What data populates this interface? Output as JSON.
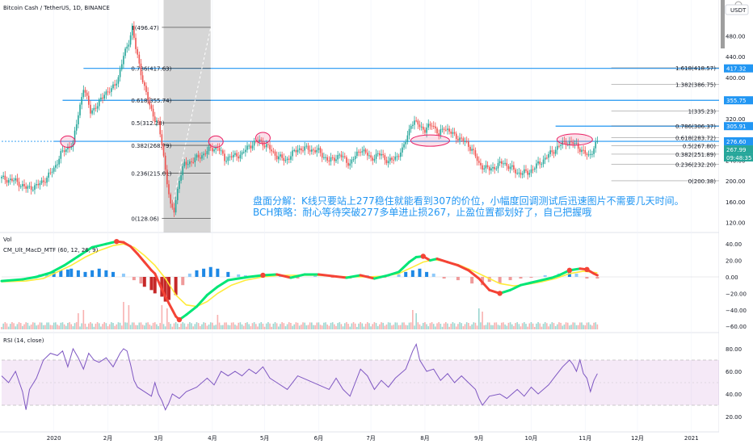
{
  "header": {
    "title": "Bitcoin Cash / TetherUS, 1D, BINANCE",
    "currency": "USDT"
  },
  "x_axis": {
    "ticks": [
      {
        "label": "2020",
        "t": 30
      },
      {
        "label": "2月",
        "t": 61
      },
      {
        "label": "3月",
        "t": 90
      },
      {
        "label": "4月",
        "t": 121
      },
      {
        "label": "5月",
        "t": 151
      },
      {
        "label": "6月",
        "t": 182
      },
      {
        "label": "7月",
        "t": 212
      },
      {
        "label": "8月",
        "t": 243
      },
      {
        "label": "9月",
        "t": 274
      },
      {
        "label": "10月",
        "t": 304
      },
      {
        "label": "11月",
        "t": 335
      },
      {
        "label": "12月",
        "t": 365
      },
      {
        "label": "2021",
        "t": 396
      }
    ],
    "t_min": 0,
    "t_max": 410
  },
  "main_chart": {
    "y_range": [
      110,
      515
    ],
    "y_ticks": [
      {
        "v": 480,
        "label": "480.00"
      },
      {
        "v": 440,
        "label": "440.00"
      },
      {
        "v": 400,
        "label": "400.00"
      },
      {
        "v": 360,
        "label": "360.00"
      },
      {
        "v": 320,
        "label": "320.00"
      },
      {
        "v": 280,
        "label": "280.00"
      },
      {
        "v": 240,
        "label": "240.00"
      },
      {
        "v": 200,
        "label": "200.00"
      },
      {
        "v": 160,
        "label": "160.00"
      },
      {
        "v": 120,
        "label": "120.00"
      }
    ],
    "price_tags": [
      {
        "v": 417.32,
        "label": "417.32",
        "color": "#2196f3"
      },
      {
        "v": 355.75,
        "label": "355.75",
        "color": "#2196f3"
      },
      {
        "v": 305.91,
        "label": "305.91",
        "color": "#2196f3"
      },
      {
        "v": 276.6,
        "label": "276.60",
        "color": "#2196f3"
      },
      {
        "v": 267.99,
        "label": "267.99",
        "color": "#26a69a"
      },
      {
        "v": 258.0,
        "label": "09:48:35",
        "color": "#26a69a"
      }
    ],
    "horizontal_lines": [
      {
        "v": 417.32,
        "t0": 47,
        "color": "#2196f3"
      },
      {
        "v": 355.75,
        "t0": 35,
        "color": "#2196f3"
      },
      {
        "v": 305.91,
        "t0": 318,
        "color": "#2196f3"
      },
      {
        "v": 276.6,
        "t0": 30,
        "color": "#2196f3"
      }
    ],
    "fib_left": {
      "t_start": 92,
      "t_end": 120,
      "levels": [
        {
          "v": 496.47,
          "label": "1(496.47)"
        },
        {
          "v": 417.63,
          "label": "0.786(417.63)"
        },
        {
          "v": 355.74,
          "label": "0.618(355.74)"
        },
        {
          "v": 312.28,
          "label": "0.5(312.28)"
        },
        {
          "v": 268.79,
          "label": "0.382(268.79)"
        },
        {
          "v": 215.01,
          "label": "0.236(215.01)"
        },
        {
          "v": 128.06,
          "label": "0(128.06)"
        }
      ]
    },
    "fib_right": {
      "t_start": 350,
      "levels": [
        {
          "v": 418.57,
          "label": "1.618(418.57)"
        },
        {
          "v": 386.75,
          "label": "1.382(386.75)"
        },
        {
          "v": 335.23,
          "label": "1(335.23)"
        },
        {
          "v": 306.37,
          "label": "0.786(306.37)"
        },
        {
          "v": 283.72,
          "label": "0.618(283.72)"
        },
        {
          "v": 267.8,
          "label": "0.5(267.80)"
        },
        {
          "v": 251.89,
          "label": "0.382(251.89)"
        },
        {
          "v": 232.2,
          "label": "0.236(232.20)"
        },
        {
          "v": 200.38,
          "label": "0(200.38)"
        }
      ]
    },
    "ellipses": [
      {
        "t": 38,
        "v": 276
      },
      {
        "t": 123,
        "v": 276
      },
      {
        "t": 150,
        "v": 283
      },
      {
        "t": 246,
        "v": 278
      },
      {
        "t": 329,
        "v": 280
      }
    ],
    "annotation_lines": [
      "盘面分解：K线只要站上277稳住就能看到307的价位，小幅度回调测试后迅速图片不需要几天时间。",
      "BCH策略：耐心等待突破277多单进止损267，止盈位置都划好了，自己把握哦"
    ]
  },
  "volume_label": "Vol",
  "macd": {
    "label": "CM_Ult_MacD_MTF (60, 12, 26, 9)",
    "y_ticks": [
      {
        "v": 40,
        "label": "40.00"
      },
      {
        "v": 20,
        "label": "20.00"
      },
      {
        "v": 0,
        "label": "0.00"
      },
      {
        "v": -20,
        "label": "−20.00"
      },
      {
        "v": -40,
        "label": "−40.00"
      },
      {
        "v": -60,
        "label": "−60.00"
      }
    ]
  },
  "rsi": {
    "label": "RSI (14, close)",
    "y_ticks": [
      {
        "v": 80,
        "label": "80.00"
      },
      {
        "v": 60,
        "label": "60.00"
      },
      {
        "v": 40,
        "label": "40.00"
      },
      {
        "v": 20,
        "label": "20.00"
      }
    ],
    "band": [
      30,
      70
    ]
  },
  "chart_data": {
    "type": "candlestick",
    "title": "Bitcoin Cash / TetherUS, 1D, BINANCE",
    "x_unit": "days since 2019-12-01",
    "price_path": [
      [
        0,
        205
      ],
      [
        8,
        200
      ],
      [
        14,
        186
      ],
      [
        20,
        190
      ],
      [
        26,
        206
      ],
      [
        30,
        224
      ],
      [
        34,
        252
      ],
      [
        38,
        265
      ],
      [
        41,
        272
      ],
      [
        44,
        330
      ],
      [
        47,
        380
      ],
      [
        51,
        335
      ],
      [
        55,
        345
      ],
      [
        59,
        370
      ],
      [
        63,
        375
      ],
      [
        67,
        400
      ],
      [
        70,
        440
      ],
      [
        73,
        470
      ],
      [
        75,
        496
      ],
      [
        77,
        455
      ],
      [
        79,
        425
      ],
      [
        82,
        380
      ],
      [
        85,
        345
      ],
      [
        88,
        320
      ],
      [
        90,
        310
      ],
      [
        92,
        270
      ],
      [
        95,
        200
      ],
      [
        97,
        150
      ],
      [
        99,
        142
      ],
      [
        102,
        205
      ],
      [
        105,
        232
      ],
      [
        110,
        240
      ],
      [
        115,
        250
      ],
      [
        120,
        262
      ],
      [
        124,
        265
      ],
      [
        128,
        243
      ],
      [
        133,
        248
      ],
      [
        138,
        252
      ],
      [
        142,
        268
      ],
      [
        148,
        278
      ],
      [
        152,
        268
      ],
      [
        158,
        248
      ],
      [
        163,
        240
      ],
      [
        170,
        262
      ],
      [
        176,
        262
      ],
      [
        182,
        257
      ],
      [
        188,
        238
      ],
      [
        194,
        250
      ],
      [
        200,
        233
      ],
      [
        206,
        262
      ],
      [
        212,
        244
      ],
      [
        218,
        252
      ],
      [
        222,
        236
      ],
      [
        226,
        246
      ],
      [
        230,
        258
      ],
      [
        235,
        310
      ],
      [
        239,
        312
      ],
      [
        243,
        296
      ],
      [
        247,
        312
      ],
      [
        251,
        288
      ],
      [
        254,
        305
      ],
      [
        258,
        292
      ],
      [
        262,
        284
      ],
      [
        266,
        275
      ],
      [
        270,
        262
      ],
      [
        274,
        232
      ],
      [
        280,
        222
      ],
      [
        288,
        236
      ],
      [
        296,
        216
      ],
      [
        302,
        216
      ],
      [
        308,
        232
      ],
      [
        314,
        250
      ],
      [
        320,
        268
      ],
      [
        324,
        276
      ],
      [
        330,
        270
      ],
      [
        334,
        255
      ],
      [
        337,
        248
      ],
      [
        342,
        275
      ]
    ],
    "vline_t": [
      93,
      120
    ],
    "vol_spikes": [
      [
        44,
        20
      ],
      [
        47,
        24
      ],
      [
        70,
        34
      ],
      [
        73,
        30
      ],
      [
        92,
        30
      ],
      [
        95,
        26
      ],
      [
        124,
        18
      ],
      [
        236,
        24
      ],
      [
        238,
        20
      ],
      [
        274,
        26
      ],
      [
        276,
        22
      ]
    ],
    "macd_fast": [
      [
        0,
        -5
      ],
      [
        12,
        -3
      ],
      [
        20,
        0
      ],
      [
        28,
        5
      ],
      [
        36,
        14
      ],
      [
        44,
        25
      ],
      [
        52,
        36
      ],
      [
        60,
        40
      ],
      [
        66,
        43
      ],
      [
        70,
        42
      ],
      [
        74,
        37
      ],
      [
        78,
        28
      ],
      [
        82,
        18
      ],
      [
        86,
        8
      ],
      [
        88,
        4
      ],
      [
        92,
        -15
      ],
      [
        96,
        -32
      ],
      [
        100,
        -48
      ],
      [
        102,
        -52
      ],
      [
        106,
        -46
      ],
      [
        112,
        -36
      ],
      [
        118,
        -22
      ],
      [
        124,
        -12
      ],
      [
        130,
        -4
      ],
      [
        136,
        -2
      ],
      [
        142,
        0
      ],
      [
        150,
        2
      ],
      [
        158,
        3
      ],
      [
        166,
        -1
      ],
      [
        174,
        3
      ],
      [
        182,
        3
      ],
      [
        190,
        1
      ],
      [
        198,
        -1
      ],
      [
        206,
        2
      ],
      [
        214,
        -2
      ],
      [
        222,
        2
      ],
      [
        228,
        6
      ],
      [
        234,
        18
      ],
      [
        238,
        24
      ],
      [
        242,
        25
      ],
      [
        246,
        20
      ],
      [
        250,
        22
      ],
      [
        256,
        18
      ],
      [
        262,
        14
      ],
      [
        268,
        8
      ],
      [
        274,
        -2
      ],
      [
        280,
        -16
      ],
      [
        286,
        -20
      ],
      [
        292,
        -16
      ],
      [
        298,
        -10
      ],
      [
        304,
        -7
      ],
      [
        310,
        -4
      ],
      [
        316,
        -1
      ],
      [
        320,
        2
      ],
      [
        326,
        8
      ],
      [
        332,
        10
      ],
      [
        336,
        9
      ],
      [
        340,
        4
      ],
      [
        342,
        2
      ]
    ],
    "macd_slow": [
      [
        0,
        -6
      ],
      [
        14,
        -5
      ],
      [
        24,
        -2
      ],
      [
        32,
        6
      ],
      [
        40,
        14
      ],
      [
        48,
        24
      ],
      [
        56,
        32
      ],
      [
        64,
        38
      ],
      [
        70,
        40
      ],
      [
        76,
        36
      ],
      [
        82,
        26
      ],
      [
        88,
        14
      ],
      [
        94,
        -2
      ],
      [
        100,
        -22
      ],
      [
        106,
        -34
      ],
      [
        112,
        -36
      ],
      [
        118,
        -30
      ],
      [
        124,
        -20
      ],
      [
        132,
        -10
      ],
      [
        140,
        -4
      ],
      [
        150,
        0
      ],
      [
        160,
        2
      ],
      [
        170,
        2
      ],
      [
        180,
        2
      ],
      [
        190,
        1
      ],
      [
        200,
        0
      ],
      [
        210,
        0
      ],
      [
        220,
        1
      ],
      [
        228,
        4
      ],
      [
        236,
        12
      ],
      [
        242,
        18
      ],
      [
        248,
        21
      ],
      [
        254,
        19
      ],
      [
        262,
        15
      ],
      [
        270,
        8
      ],
      [
        278,
        0
      ],
      [
        286,
        -8
      ],
      [
        294,
        -11
      ],
      [
        302,
        -9
      ],
      [
        310,
        -6
      ],
      [
        318,
        -2
      ],
      [
        326,
        4
      ],
      [
        334,
        7
      ],
      [
        342,
        5
      ]
    ],
    "macd_hist": [
      [
        22,
        3
      ],
      [
        26,
        4
      ],
      [
        30,
        6
      ],
      [
        34,
        8
      ],
      [
        38,
        9
      ],
      [
        40,
        10
      ],
      [
        44,
        8
      ],
      [
        48,
        6
      ],
      [
        52,
        8
      ],
      [
        56,
        10
      ],
      [
        60,
        8
      ],
      [
        64,
        6
      ],
      [
        70,
        4
      ],
      [
        76,
        -4
      ],
      [
        80,
        -8
      ],
      [
        82,
        -12
      ],
      [
        86,
        -16
      ],
      [
        88,
        -20
      ],
      [
        92,
        -24
      ],
      [
        94,
        -30
      ],
      [
        96,
        -28
      ],
      [
        100,
        -22
      ],
      [
        104,
        -10
      ],
      [
        108,
        4
      ],
      [
        112,
        8
      ],
      [
        116,
        10
      ],
      [
        120,
        12
      ],
      [
        124,
        10
      ],
      [
        130,
        6
      ],
      [
        136,
        3
      ],
      [
        140,
        2
      ],
      [
        146,
        1
      ],
      [
        152,
        2
      ],
      [
        160,
        2
      ],
      [
        170,
        -2
      ],
      [
        180,
        2
      ],
      [
        190,
        -1
      ],
      [
        200,
        -2
      ],
      [
        210,
        2
      ],
      [
        220,
        -1
      ],
      [
        228,
        3
      ],
      [
        232,
        6
      ],
      [
        236,
        8
      ],
      [
        240,
        10
      ],
      [
        244,
        6
      ],
      [
        248,
        4
      ],
      [
        254,
        -2
      ],
      [
        262,
        -4
      ],
      [
        270,
        -8
      ],
      [
        276,
        -10
      ],
      [
        280,
        -6
      ],
      [
        286,
        -8
      ],
      [
        292,
        -4
      ],
      [
        298,
        -2
      ],
      [
        304,
        -1
      ],
      [
        312,
        2
      ],
      [
        320,
        4
      ],
      [
        326,
        6
      ],
      [
        330,
        4
      ],
      [
        336,
        -2
      ],
      [
        342,
        -2
      ]
    ],
    "rsi_path": [
      [
        0,
        56
      ],
      [
        4,
        50
      ],
      [
        8,
        60
      ],
      [
        12,
        42
      ],
      [
        14,
        26
      ],
      [
        16,
        44
      ],
      [
        20,
        54
      ],
      [
        24,
        70
      ],
      [
        28,
        76
      ],
      [
        32,
        74
      ],
      [
        35,
        78
      ],
      [
        38,
        64
      ],
      [
        41,
        80
      ],
      [
        44,
        72
      ],
      [
        47,
        62
      ],
      [
        50,
        76
      ],
      [
        53,
        70
      ],
      [
        56,
        68
      ],
      [
        60,
        72
      ],
      [
        64,
        64
      ],
      [
        68,
        76
      ],
      [
        70,
        80
      ],
      [
        72,
        78
      ],
      [
        74,
        66
      ],
      [
        76,
        52
      ],
      [
        78,
        46
      ],
      [
        82,
        42
      ],
      [
        86,
        38
      ],
      [
        88,
        50
      ],
      [
        90,
        40
      ],
      [
        92,
        34
      ],
      [
        94,
        26
      ],
      [
        96,
        32
      ],
      [
        98,
        40
      ],
      [
        102,
        36
      ],
      [
        106,
        42
      ],
      [
        112,
        46
      ],
      [
        118,
        54
      ],
      [
        122,
        48
      ],
      [
        126,
        60
      ],
      [
        130,
        56
      ],
      [
        134,
        60
      ],
      [
        138,
        56
      ],
      [
        142,
        62
      ],
      [
        146,
        58
      ],
      [
        150,
        64
      ],
      [
        154,
        54
      ],
      [
        158,
        50
      ],
      [
        164,
        44
      ],
      [
        170,
        56
      ],
      [
        176,
        52
      ],
      [
        182,
        48
      ],
      [
        188,
        44
      ],
      [
        192,
        54
      ],
      [
        196,
        44
      ],
      [
        200,
        38
      ],
      [
        206,
        62
      ],
      [
        210,
        56
      ],
      [
        214,
        44
      ],
      [
        218,
        52
      ],
      [
        222,
        46
      ],
      [
        226,
        54
      ],
      [
        232,
        62
      ],
      [
        236,
        78
      ],
      [
        238,
        84
      ],
      [
        240,
        70
      ],
      [
        244,
        60
      ],
      [
        248,
        62
      ],
      [
        252,
        52
      ],
      [
        256,
        58
      ],
      [
        260,
        50
      ],
      [
        264,
        56
      ],
      [
        268,
        50
      ],
      [
        272,
        44
      ],
      [
        274,
        36
      ],
      [
        276,
        30
      ],
      [
        280,
        38
      ],
      [
        286,
        40
      ],
      [
        290,
        36
      ],
      [
        296,
        44
      ],
      [
        300,
        38
      ],
      [
        304,
        46
      ],
      [
        308,
        40
      ],
      [
        314,
        48
      ],
      [
        318,
        56
      ],
      [
        322,
        64
      ],
      [
        326,
        70
      ],
      [
        328,
        66
      ],
      [
        330,
        60
      ],
      [
        332,
        70
      ],
      [
        334,
        58
      ],
      [
        336,
        54
      ],
      [
        338,
        42
      ],
      [
        340,
        52
      ],
      [
        342,
        58
      ]
    ]
  }
}
